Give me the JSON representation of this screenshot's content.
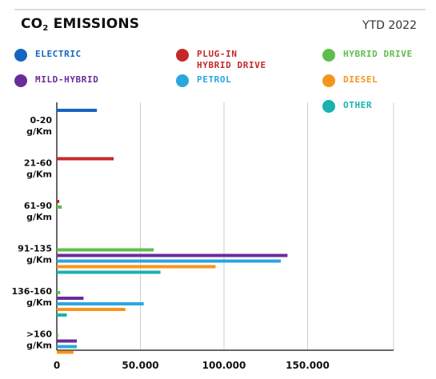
{
  "header": {
    "title_main": "CO",
    "title_sub": "2",
    "title_rest": " EMISSIONS",
    "period": "YTD 2022"
  },
  "colors": {
    "background": "#ffffff",
    "axis": "#333333",
    "grid": "#cfcfcf"
  },
  "chart_data": {
    "type": "bar",
    "orientation": "horizontal",
    "title": "CO2 EMISSIONS",
    "subtitle": "YTD 2022",
    "categories": [
      "0-20\ng/Km",
      "21-60\ng/Km",
      "61-90\ng/Km",
      "91-135\ng/Km",
      "136-160\ng/Km",
      ">160\ng/Km"
    ],
    "xlim": [
      0,
      190000
    ],
    "xticks": [
      0,
      50000,
      100000,
      150000
    ],
    "xtick_labels": [
      "0",
      "50.000",
      "100.000",
      "150.000"
    ],
    "grid": "vertical",
    "legend_position": "top",
    "series": [
      {
        "name": "ELECTRIC",
        "color": "#1565c0",
        "values": [
          24000,
          0,
          0,
          0,
          0,
          0
        ]
      },
      {
        "name": "PLUG-IN\nHYBRID DRIVE",
        "color": "#c62828",
        "values": [
          0,
          34000,
          1500,
          0,
          0,
          0
        ]
      },
      {
        "name": "HYBRID DRIVE",
        "color": "#5cbf4a",
        "values": [
          0,
          0,
          3000,
          58000,
          2000,
          1000
        ]
      },
      {
        "name": "MILD-HYBRID",
        "color": "#6a2c9a",
        "values": [
          0,
          0,
          0,
          138000,
          16000,
          12000
        ]
      },
      {
        "name": "PETROL",
        "color": "#2aa7df",
        "values": [
          0,
          0,
          0,
          134000,
          52000,
          12000
        ]
      },
      {
        "name": "DIESEL",
        "color": "#f7941d",
        "values": [
          0,
          0,
          0,
          95000,
          41000,
          10000
        ]
      },
      {
        "name": "OTHER",
        "color": "#17b3ac",
        "values": [
          0,
          0,
          0,
          62000,
          6000,
          0
        ]
      }
    ]
  }
}
